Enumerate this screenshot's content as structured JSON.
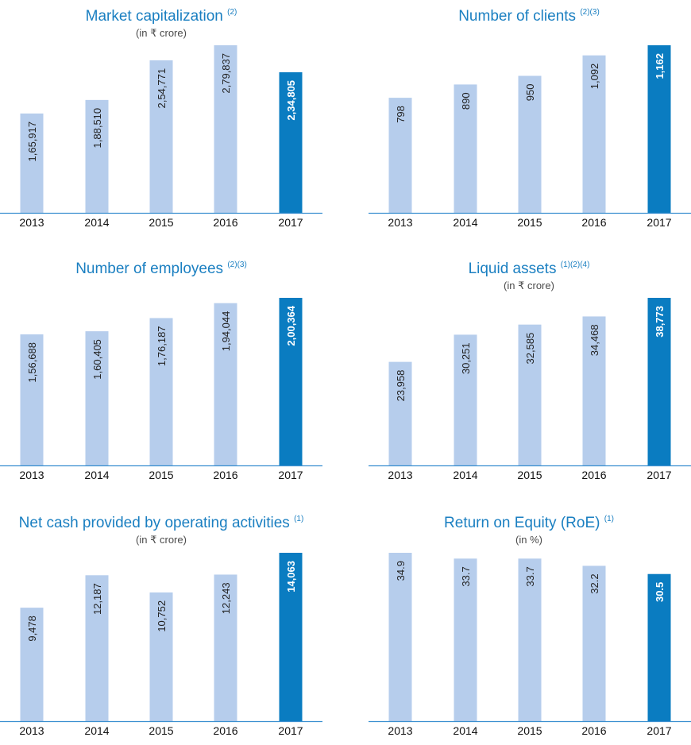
{
  "colors": {
    "bar": "#b6cdec",
    "highlight": "#0a7cc1",
    "axis": "#3a8fd0",
    "title": "#1a7fc1"
  },
  "chart_data": [
    {
      "type": "bar",
      "title": "Market capitalization",
      "title_note": "(2)",
      "subtitle": "(in ₹ crore)",
      "categories": [
        "2013",
        "2014",
        "2015",
        "2016",
        "2017"
      ],
      "values": [
        165917,
        188510,
        254771,
        279837,
        234805
      ],
      "value_labels": [
        "1,65,917",
        "1,88,510",
        "2,54,771",
        "2,79,837",
        "2,34,805"
      ],
      "highlight_index": 4
    },
    {
      "type": "bar",
      "title": "Number of clients",
      "title_note": "(2)(3)",
      "subtitle": "",
      "categories": [
        "2013",
        "2014",
        "2015",
        "2016",
        "2017"
      ],
      "values": [
        798,
        890,
        950,
        1092,
        1162
      ],
      "value_labels": [
        "798",
        "890",
        "950",
        "1,092",
        "1,162"
      ],
      "highlight_index": 4
    },
    {
      "type": "bar",
      "title": "Number of employees",
      "title_note": "(2)(3)",
      "subtitle": "",
      "categories": [
        "2013",
        "2014",
        "2015",
        "2016",
        "2017"
      ],
      "values": [
        156688,
        160405,
        176187,
        194044,
        200364
      ],
      "value_labels": [
        "1,56,688",
        "1,60,405",
        "1,76,187",
        "1,94,044",
        "2,00,364"
      ],
      "highlight_index": 4
    },
    {
      "type": "bar",
      "title": "Liquid assets",
      "title_note": "(1)(2)(4)",
      "subtitle": "(in ₹ crore)",
      "categories": [
        "2013",
        "2014",
        "2015",
        "2016",
        "2017"
      ],
      "values": [
        23958,
        30251,
        32585,
        34468,
        38773
      ],
      "value_labels": [
        "23,958",
        "30,251",
        "32,585",
        "34,468",
        "38,773"
      ],
      "highlight_index": 4
    },
    {
      "type": "bar",
      "title": "Net cash provided by operating activities",
      "title_note": "(1)",
      "subtitle": "(in ₹ crore)",
      "categories": [
        "2013",
        "2014",
        "2015",
        "2016",
        "2017"
      ],
      "values": [
        9478,
        12187,
        10752,
        12243,
        14063
      ],
      "value_labels": [
        "9,478",
        "12,187",
        "10,752",
        "12,243",
        "14,063"
      ],
      "highlight_index": 4
    },
    {
      "type": "bar",
      "title": "Return on Equity (RoE)",
      "title_note": "(1)",
      "subtitle": "(in %)",
      "categories": [
        "2013",
        "2014",
        "2015",
        "2016",
        "2017"
      ],
      "values": [
        34.9,
        33.7,
        33.7,
        32.2,
        30.5
      ],
      "value_labels": [
        "34.9",
        "33.7",
        "33.7",
        "32.2",
        "30.5"
      ],
      "highlight_index": 4
    }
  ]
}
